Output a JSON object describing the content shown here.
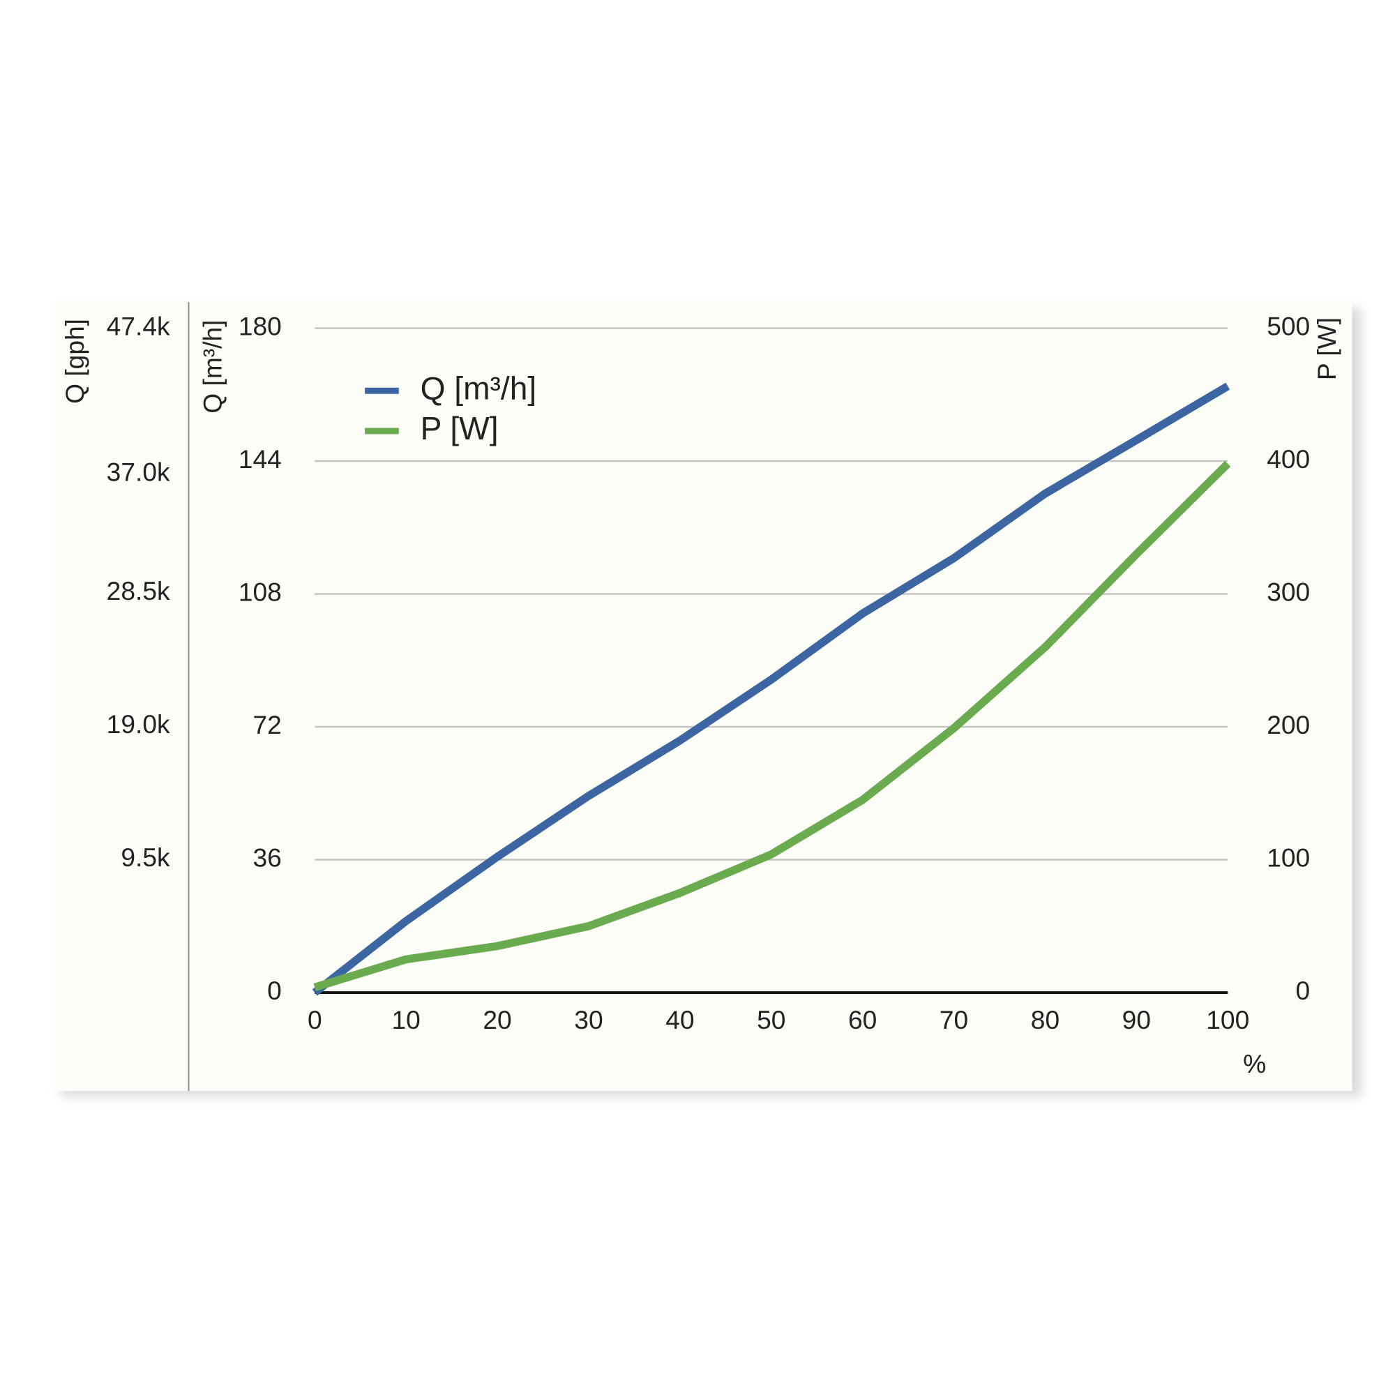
{
  "chart_data": {
    "type": "line",
    "x_label": "%",
    "y_label": "Q [m³/h]",
    "y2_label": "P [W]",
    "y3_label": "Q [gph]",
    "x": [
      0,
      10,
      20,
      30,
      40,
      50,
      60,
      70,
      80,
      90,
      100
    ],
    "xlim": [
      0,
      100
    ],
    "xticks": [
      0,
      10,
      20,
      30,
      40,
      50,
      60,
      70,
      80,
      90,
      100
    ],
    "ylim": [
      0,
      180
    ],
    "yticks": [
      0,
      36,
      72,
      108,
      144,
      180
    ],
    "y2lim": [
      0,
      500
    ],
    "y2ticks": [
      0,
      100,
      200,
      300,
      400,
      500
    ],
    "y3lim": [
      0,
      47400
    ],
    "y3ticks": [
      {
        "value": 9500,
        "label": "9.5k"
      },
      {
        "value": 19000,
        "label": "19.0k"
      },
      {
        "value": 28500,
        "label": "28.5k"
      },
      {
        "value": 37000,
        "label": "37.0k"
      },
      {
        "value": 47400,
        "label": "47.4k"
      }
    ],
    "grid": true,
    "legend": "upper left",
    "series": [
      {
        "name": "Q [m³/h]",
        "color": "#3b66a1",
        "values": [
          0,
          19.4,
          36.8,
          53.3,
          68.3,
          84.8,
          102.7,
          117.7,
          135.2,
          149.7,
          164.3
        ]
      },
      {
        "name": "P [W]",
        "color": "#6aab50",
        "axis": "y2",
        "values": [
          4,
          25,
          35,
          50,
          75,
          104,
          145,
          199,
          260,
          330,
          398
        ]
      }
    ]
  }
}
